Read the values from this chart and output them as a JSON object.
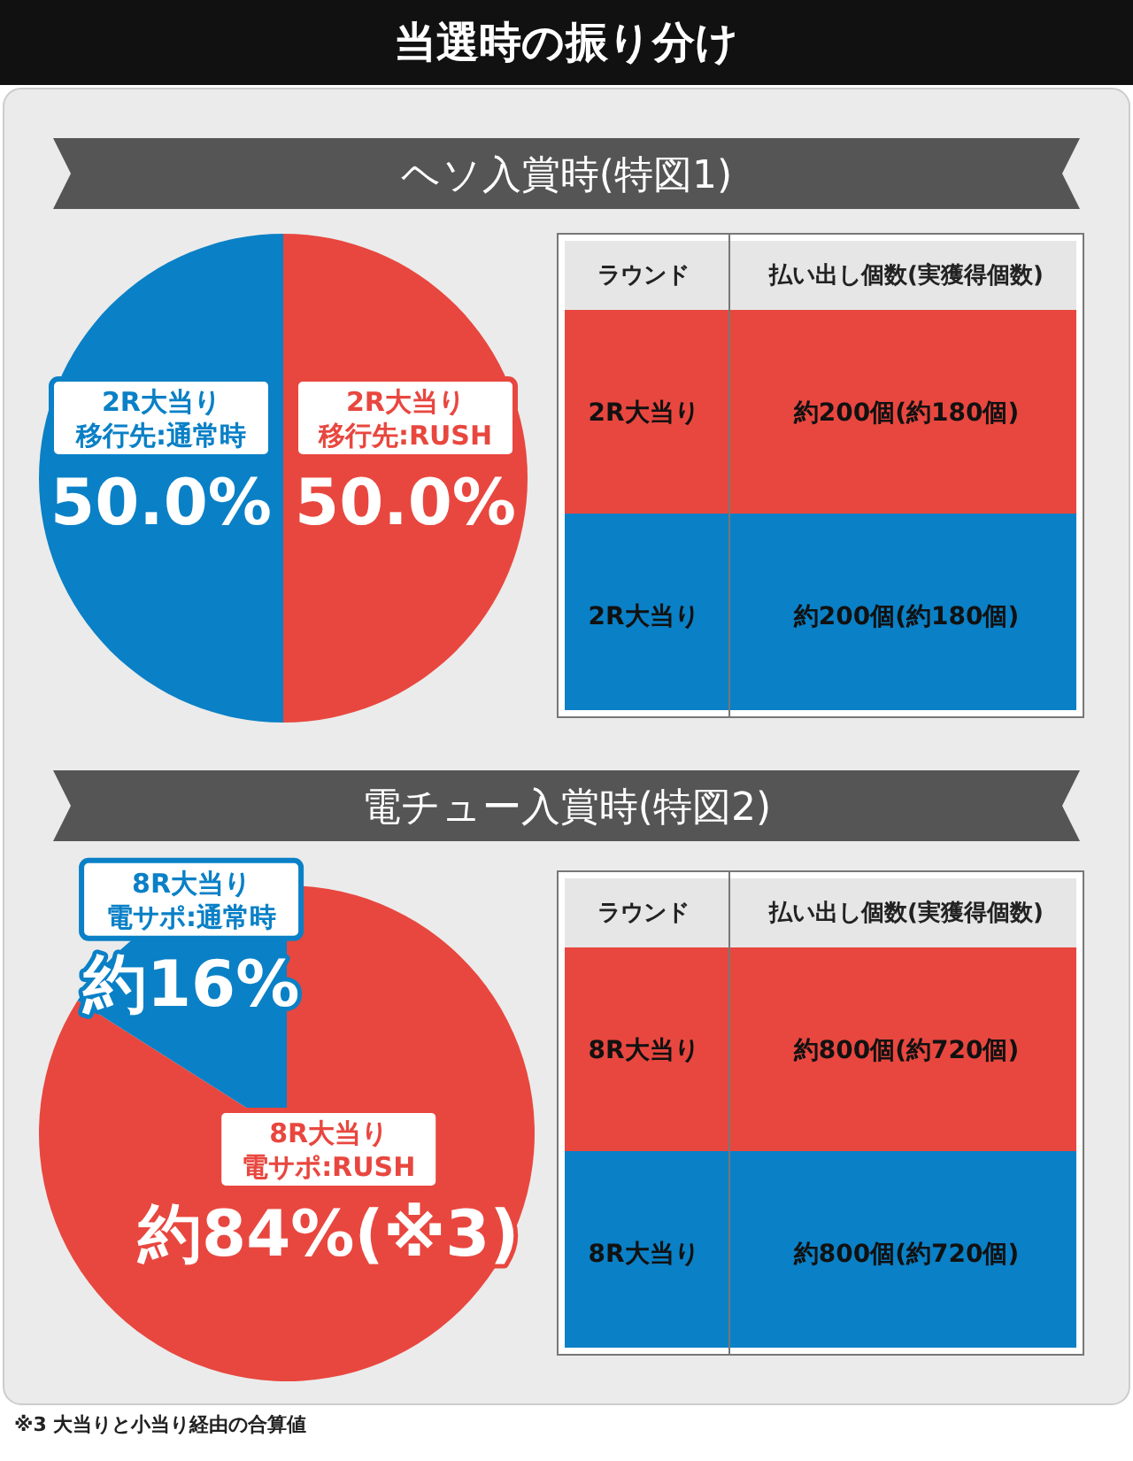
{
  "chart_data": [
    {
      "type": "pie",
      "title": "当選時の振り分け",
      "subtitle": "ヘソ入賞時(特図1)",
      "categories": [
        "2R大当り移行先:RUSH",
        "2R大当り移行先:通常時"
      ],
      "values": [
        50,
        50
      ],
      "colors": [
        "#e8473f",
        "#0a80c6"
      ],
      "value_labels": [
        "50.0%",
        "50.0%"
      ]
    },
    {
      "type": "other",
      "categories": [
        "2R大当り",
        "2R大当り"
      ],
      "value_labels": [
        "約200個(約180個)",
        "約200個(約180個)"
      ],
      "colors": [
        "#e8473f",
        "#0a80c6"
      ],
      "annotations": [
        "ラウンド",
        "払い出し個数(実獲得個数)"
      ]
    },
    {
      "type": "pie",
      "title": "電チュー入賞時(特図2)",
      "categories": [
        "8R大当り電サポ:RUSH",
        "8R大当り電サポ:通常時"
      ],
      "values": [
        84,
        16
      ],
      "colors": [
        "#e8473f",
        "#0a80c6"
      ],
      "value_labels": [
        "約84%(※3)",
        "約16%"
      ]
    },
    {
      "type": "other",
      "categories": [
        "8R大当り",
        "8R大当り"
      ],
      "value_labels": [
        "約800個(約720個)",
        "約800個(約720個)"
      ],
      "colors": [
        "#e8473f",
        "#0a80c6"
      ],
      "annotations": [
        "ラウンド",
        "払い出し個数(実獲得個数)",
        "※3 大当りと小当り経由の合算値"
      ]
    }
  ]
}
